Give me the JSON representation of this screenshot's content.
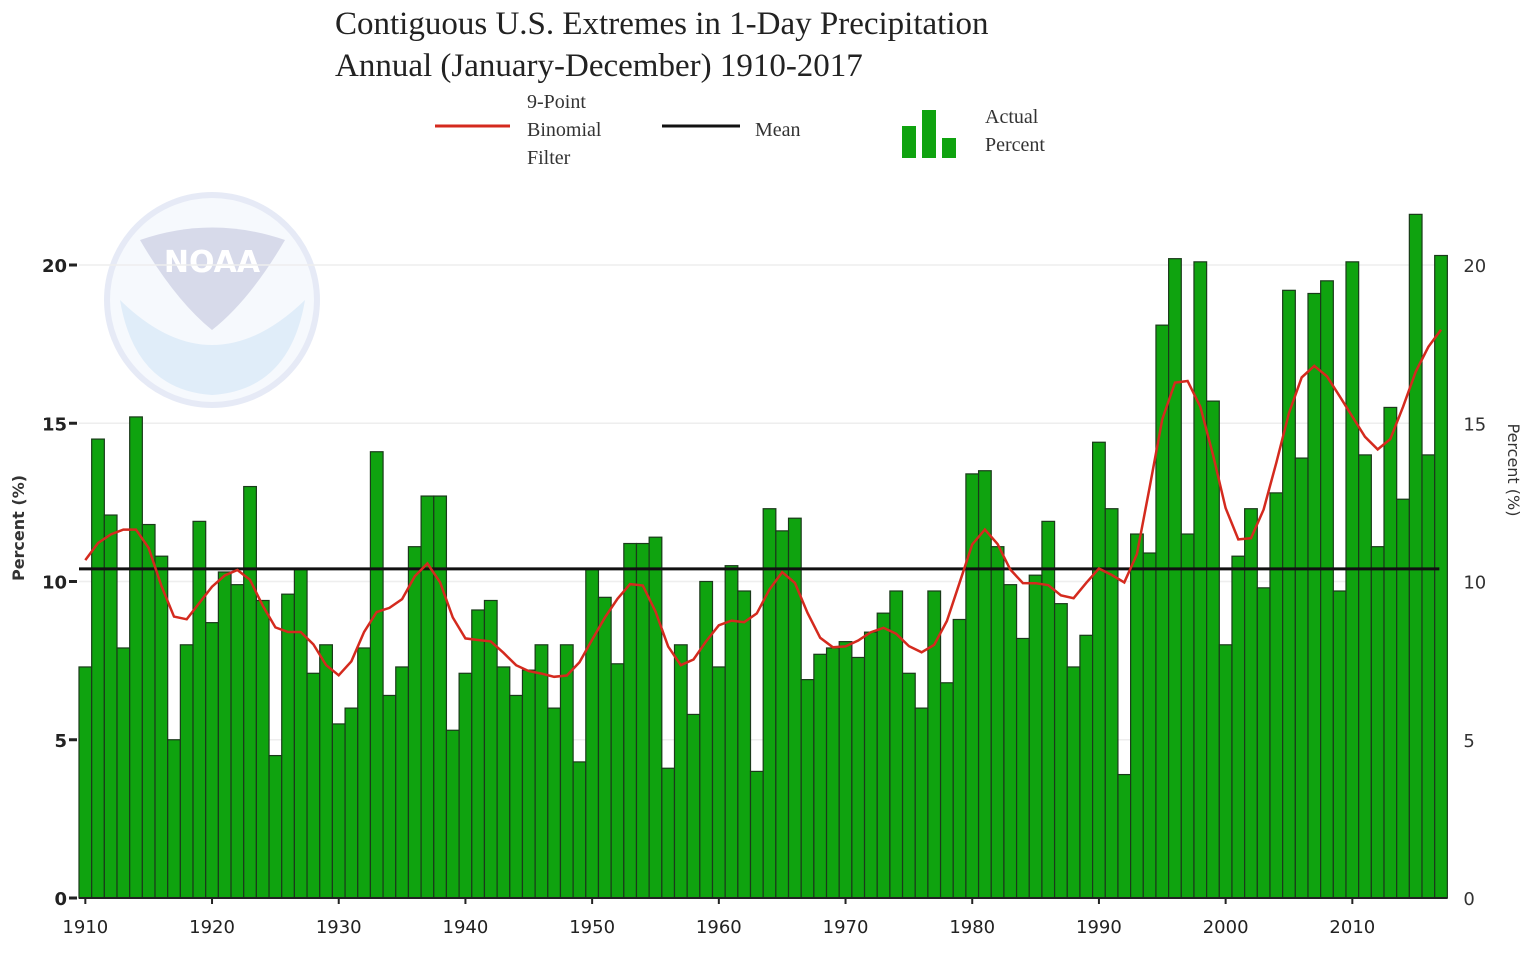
{
  "chart_data": {
    "type": "bar",
    "title": "Contiguous U.S. Extremes in 1-Day Precipitation",
    "subtitle": "Annual (January-December) 1910-2017",
    "ylabel": "Percent (%)",
    "ylabel_right": "Percent (%)",
    "xlabel": "",
    "ylim": [
      0,
      22
    ],
    "yticks": [
      "0",
      "5",
      "10",
      "15",
      "20"
    ],
    "xticks": [
      "1910",
      "1920",
      "1930",
      "1940",
      "1950",
      "1960",
      "1970",
      "1980",
      "1990",
      "2000",
      "2010"
    ],
    "legend": {
      "placement": "top",
      "filter_label": [
        "9-Point",
        "Binomial",
        "Filter"
      ],
      "mean_label": "Mean",
      "bars_label": [
        "Actual",
        "Percent"
      ]
    },
    "mean": 10.4,
    "start_year": 1910,
    "values": [
      7.3,
      14.5,
      12.1,
      7.9,
      15.2,
      11.8,
      10.8,
      5.0,
      8.0,
      11.9,
      8.7,
      10.3,
      9.9,
      13.0,
      9.4,
      4.5,
      9.6,
      10.4,
      7.1,
      8.0,
      5.5,
      6.0,
      7.9,
      14.1,
      6.4,
      7.3,
      11.1,
      12.7,
      12.7,
      5.3,
      7.1,
      9.1,
      9.4,
      7.3,
      6.4,
      7.2,
      8.0,
      6.0,
      8.0,
      4.3,
      10.4,
      9.5,
      7.4,
      11.2,
      11.2,
      11.4,
      4.1,
      8.0,
      5.8,
      10.0,
      7.3,
      10.5,
      9.7,
      4.0,
      12.3,
      11.6,
      12.0,
      6.9,
      7.7,
      7.9,
      8.1,
      7.6,
      8.4,
      9.0,
      9.7,
      7.1,
      6.0,
      9.7,
      6.8,
      8.8,
      13.4,
      13.5,
      11.1,
      9.9,
      8.2,
      10.2,
      11.9,
      9.3,
      7.3,
      8.3,
      14.4,
      12.3,
      3.9,
      11.5,
      10.9,
      18.1,
      20.2,
      11.5,
      20.1,
      15.7,
      8.0,
      10.8,
      12.3,
      9.8,
      12.8,
      19.2,
      13.9,
      19.1,
      19.5,
      9.7,
      20.1,
      14.0,
      11.1,
      15.5,
      12.6,
      21.6,
      14.0,
      20.3
    ],
    "colors": {
      "bars": "#0fa30f",
      "bar_edge": "#1a3a1a",
      "filter": "#d42a1e",
      "mean": "#111111"
    },
    "watermark": "NOAA"
  }
}
